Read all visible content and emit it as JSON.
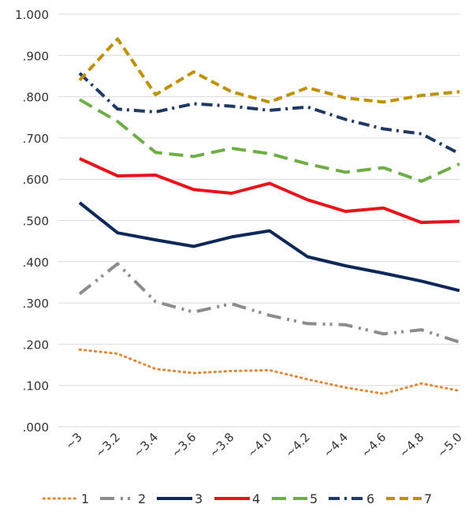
{
  "chart_data": {
    "type": "line",
    "title": "",
    "xlabel": "",
    "ylabel": "",
    "ylim": [
      0,
      1.0
    ],
    "yticks": [
      ".000",
      ".100",
      ".200",
      ".300",
      ".400",
      ".500",
      ".600",
      ".700",
      ".800",
      ".900",
      "1.000"
    ],
    "categories": [
      "~3",
      "~3.2",
      "~3.4",
      "~3.6",
      "~3.8",
      "~4.0",
      "~4.2",
      "~4.4",
      "~4.6",
      "~4.8",
      "~5.0"
    ],
    "grid": true,
    "legend_position": "bottom",
    "series": [
      {
        "name": "1",
        "color": "#e08a3c",
        "dash": "dot",
        "values": [
          0.187,
          0.177,
          0.14,
          0.13,
          0.135,
          0.137,
          0.115,
          0.095,
          0.08,
          0.105,
          0.087
        ]
      },
      {
        "name": "2",
        "color": "#8c8c8c",
        "dash": "long-dash-dot-dot",
        "values": [
          0.322,
          0.395,
          0.303,
          0.278,
          0.298,
          0.27,
          0.25,
          0.247,
          0.225,
          0.235,
          0.205
        ]
      },
      {
        "name": "3",
        "color": "#0d2859",
        "dash": "solid",
        "values": [
          0.543,
          0.47,
          0.453,
          0.437,
          0.46,
          0.475,
          0.412,
          0.39,
          0.372,
          0.353,
          0.33
        ]
      },
      {
        "name": "4",
        "color": "#e8141b",
        "dash": "solid",
        "values": [
          0.65,
          0.608,
          0.61,
          0.575,
          0.566,
          0.59,
          0.55,
          0.522,
          0.53,
          0.495,
          0.498
        ]
      },
      {
        "name": "5",
        "color": "#70ad47",
        "dash": "long-dash",
        "values": [
          0.793,
          0.74,
          0.665,
          0.655,
          0.675,
          0.662,
          0.637,
          0.617,
          0.628,
          0.595,
          0.637
        ]
      },
      {
        "name": "6",
        "color": "#203864",
        "dash": "dash-dot",
        "values": [
          0.857,
          0.77,
          0.763,
          0.783,
          0.777,
          0.767,
          0.775,
          0.745,
          0.722,
          0.71,
          0.662
        ]
      },
      {
        "name": "7",
        "color": "#bf9000",
        "dash": "dash",
        "values": [
          0.84,
          0.94,
          0.805,
          0.86,
          0.812,
          0.787,
          0.822,
          0.797,
          0.787,
          0.803,
          0.812
        ]
      }
    ]
  }
}
